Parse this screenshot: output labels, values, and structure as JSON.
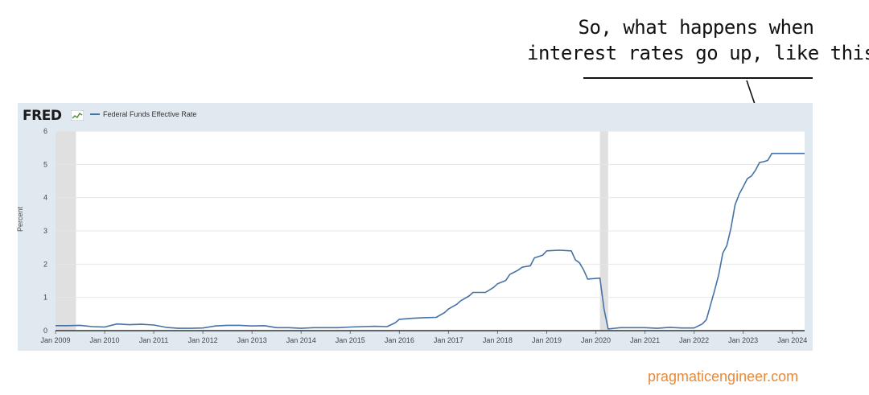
{
  "annotation": {
    "line1": "So, what happens when",
    "line2": "interest rates go up, like this?"
  },
  "fred": {
    "logo": "FRED",
    "legend": "Federal Funds Effective Rate",
    "ylabel": "Percent"
  },
  "footer": {
    "site": "pragmaticengineer.com"
  },
  "colors": {
    "line": "#4572a7",
    "panel": "#e1e9f0",
    "recession": "#e0e0e0",
    "site": "#e8893a"
  },
  "chart_data": {
    "type": "line",
    "title": "",
    "xlabel": "",
    "ylabel": "Percent",
    "legend": "Federal Funds Effective Rate",
    "xlim": [
      "2009-01",
      "2024-04"
    ],
    "ylim": [
      0,
      6
    ],
    "yticks": [
      0,
      1,
      2,
      3,
      4,
      5,
      6
    ],
    "xticks": [
      "Jan 2009",
      "Jan 2010",
      "Jan 2011",
      "Jan 2012",
      "Jan 2013",
      "Jan 2014",
      "Jan 2015",
      "Jan 2016",
      "Jan 2017",
      "Jan 2018",
      "Jan 2019",
      "Jan 2020",
      "Jan 2021",
      "Jan 2022",
      "Jan 2023",
      "Jan 2024"
    ],
    "recessions": [
      [
        "2009-01",
        "2009-06"
      ],
      [
        "2020-02",
        "2020-04"
      ]
    ],
    "grid": true,
    "series": [
      {
        "name": "Federal Funds Effective Rate",
        "points": [
          [
            "2009-01",
            0.15
          ],
          [
            "2009-04",
            0.15
          ],
          [
            "2009-07",
            0.16
          ],
          [
            "2009-10",
            0.12
          ],
          [
            "2010-01",
            0.11
          ],
          [
            "2010-04",
            0.2
          ],
          [
            "2010-07",
            0.18
          ],
          [
            "2010-10",
            0.19
          ],
          [
            "2011-01",
            0.17
          ],
          [
            "2011-04",
            0.1
          ],
          [
            "2011-07",
            0.07
          ],
          [
            "2011-10",
            0.07
          ],
          [
            "2012-01",
            0.08
          ],
          [
            "2012-04",
            0.14
          ],
          [
            "2012-07",
            0.16
          ],
          [
            "2012-10",
            0.16
          ],
          [
            "2013-01",
            0.14
          ],
          [
            "2013-04",
            0.15
          ],
          [
            "2013-07",
            0.09
          ],
          [
            "2013-10",
            0.09
          ],
          [
            "2014-01",
            0.07
          ],
          [
            "2014-04",
            0.09
          ],
          [
            "2014-07",
            0.09
          ],
          [
            "2014-10",
            0.09
          ],
          [
            "2015-01",
            0.11
          ],
          [
            "2015-04",
            0.12
          ],
          [
            "2015-07",
            0.13
          ],
          [
            "2015-10",
            0.12
          ],
          [
            "2015-12",
            0.24
          ],
          [
            "2016-01",
            0.34
          ],
          [
            "2016-04",
            0.37
          ],
          [
            "2016-07",
            0.39
          ],
          [
            "2016-10",
            0.4
          ],
          [
            "2016-12",
            0.54
          ],
          [
            "2017-01",
            0.65
          ],
          [
            "2017-03",
            0.79
          ],
          [
            "2017-04",
            0.9
          ],
          [
            "2017-06",
            1.04
          ],
          [
            "2017-07",
            1.15
          ],
          [
            "2017-10",
            1.15
          ],
          [
            "2017-12",
            1.3
          ],
          [
            "2018-01",
            1.41
          ],
          [
            "2018-03",
            1.51
          ],
          [
            "2018-04",
            1.69
          ],
          [
            "2018-06",
            1.82
          ],
          [
            "2018-07",
            1.91
          ],
          [
            "2018-09",
            1.95
          ],
          [
            "2018-10",
            2.19
          ],
          [
            "2018-12",
            2.27
          ],
          [
            "2019-01",
            2.4
          ],
          [
            "2019-04",
            2.42
          ],
          [
            "2019-07",
            2.4
          ],
          [
            "2019-08",
            2.13
          ],
          [
            "2019-09",
            2.04
          ],
          [
            "2019-10",
            1.83
          ],
          [
            "2019-11",
            1.55
          ],
          [
            "2020-02",
            1.58
          ],
          [
            "2020-03",
            0.65
          ],
          [
            "2020-04",
            0.05
          ],
          [
            "2020-07",
            0.09
          ],
          [
            "2020-10",
            0.09
          ],
          [
            "2021-01",
            0.09
          ],
          [
            "2021-04",
            0.07
          ],
          [
            "2021-07",
            0.1
          ],
          [
            "2021-10",
            0.08
          ],
          [
            "2022-01",
            0.08
          ],
          [
            "2022-03",
            0.2
          ],
          [
            "2022-04",
            0.33
          ],
          [
            "2022-05",
            0.77
          ],
          [
            "2022-06",
            1.21
          ],
          [
            "2022-07",
            1.68
          ],
          [
            "2022-08",
            2.33
          ],
          [
            "2022-09",
            2.56
          ],
          [
            "2022-10",
            3.08
          ],
          [
            "2022-11",
            3.78
          ],
          [
            "2022-12",
            4.1
          ],
          [
            "2023-01",
            4.33
          ],
          [
            "2023-02",
            4.57
          ],
          [
            "2023-03",
            4.65
          ],
          [
            "2023-04",
            4.83
          ],
          [
            "2023-05",
            5.06
          ],
          [
            "2023-06",
            5.08
          ],
          [
            "2023-07",
            5.12
          ],
          [
            "2023-08",
            5.33
          ],
          [
            "2023-10",
            5.33
          ],
          [
            "2024-01",
            5.33
          ],
          [
            "2024-04",
            5.33
          ]
        ]
      }
    ]
  }
}
